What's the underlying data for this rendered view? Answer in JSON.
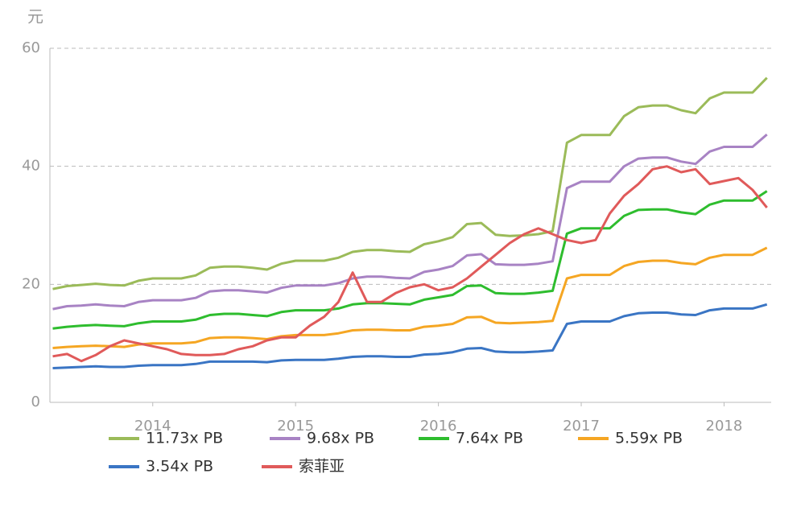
{
  "chart_data": {
    "type": "line",
    "y_label": "元",
    "x": [
      2013.3,
      2013.4,
      2013.5,
      2013.6,
      2013.7,
      2013.8,
      2013.9,
      2014.0,
      2014.1,
      2014.2,
      2014.3,
      2014.4,
      2014.5,
      2014.6,
      2014.7,
      2014.8,
      2014.9,
      2015.0,
      2015.1,
      2015.2,
      2015.3,
      2015.4,
      2015.5,
      2015.6,
      2015.7,
      2015.8,
      2015.9,
      2016.0,
      2016.1,
      2016.2,
      2016.3,
      2016.4,
      2016.5,
      2016.6,
      2016.7,
      2016.8,
      2016.9,
      2017.0,
      2017.1,
      2017.2,
      2017.3,
      2017.4,
      2017.5,
      2017.6,
      2017.7,
      2017.8,
      2017.9,
      2018.0,
      2018.1,
      2018.2,
      2018.3
    ],
    "xlim": [
      2013.28,
      2018.33
    ],
    "xticks": [
      2014,
      2015,
      2016,
      2017,
      2018
    ],
    "ylim": [
      0,
      60
    ],
    "yticks": [
      0,
      20,
      40,
      60
    ],
    "grid": true,
    "legend": "bottom",
    "series": [
      {
        "name": "11.73x PB",
        "color": "#9bbb59",
        "values": [
          19.2,
          19.7,
          19.9,
          20.1,
          19.9,
          19.8,
          20.6,
          21.0,
          21.0,
          21.0,
          21.5,
          22.8,
          23.0,
          23.0,
          22.8,
          22.5,
          23.5,
          24.0,
          24.0,
          24.0,
          24.5,
          25.5,
          25.8,
          25.8,
          25.6,
          25.5,
          26.8,
          27.3,
          28.0,
          30.2,
          30.4,
          28.4,
          28.2,
          28.3,
          28.5,
          29.0,
          44.0,
          45.3,
          45.3,
          45.3,
          48.5,
          50.0,
          50.3,
          50.3,
          49.5,
          49.0,
          51.5,
          52.5,
          52.5,
          52.5,
          55.0
        ]
      },
      {
        "name": "9.68x PB",
        "color": "#a883c4",
        "values": [
          15.8,
          16.3,
          16.4,
          16.6,
          16.4,
          16.3,
          17.0,
          17.3,
          17.3,
          17.3,
          17.7,
          18.8,
          19.0,
          19.0,
          18.8,
          18.6,
          19.4,
          19.8,
          19.8,
          19.8,
          20.2,
          21.0,
          21.3,
          21.3,
          21.1,
          21.0,
          22.1,
          22.5,
          23.1,
          24.9,
          25.1,
          23.4,
          23.3,
          23.3,
          23.5,
          23.9,
          36.3,
          37.4,
          37.4,
          37.4,
          40.0,
          41.3,
          41.5,
          41.5,
          40.8,
          40.4,
          42.5,
          43.3,
          43.3,
          43.3,
          45.4
        ]
      },
      {
        "name": "7.64x PB",
        "color": "#2ebd2e",
        "values": [
          12.5,
          12.8,
          13.0,
          13.1,
          13.0,
          12.9,
          13.4,
          13.7,
          13.7,
          13.7,
          14.0,
          14.8,
          15.0,
          15.0,
          14.8,
          14.6,
          15.3,
          15.6,
          15.6,
          15.6,
          15.9,
          16.6,
          16.8,
          16.8,
          16.7,
          16.6,
          17.4,
          17.8,
          18.2,
          19.7,
          19.8,
          18.5,
          18.4,
          18.4,
          18.6,
          18.9,
          28.6,
          29.5,
          29.5,
          29.5,
          31.6,
          32.6,
          32.7,
          32.7,
          32.2,
          31.9,
          33.5,
          34.2,
          34.2,
          34.2,
          35.8
        ]
      },
      {
        "name": "5.59x PB",
        "color": "#f5a623",
        "values": [
          9.2,
          9.4,
          9.5,
          9.6,
          9.5,
          9.4,
          9.8,
          10.0,
          10.0,
          10.0,
          10.2,
          10.9,
          11.0,
          11.0,
          10.9,
          10.7,
          11.2,
          11.4,
          11.4,
          11.4,
          11.7,
          12.2,
          12.3,
          12.3,
          12.2,
          12.2,
          12.8,
          13.0,
          13.3,
          14.4,
          14.5,
          13.5,
          13.4,
          13.5,
          13.6,
          13.8,
          21.0,
          21.6,
          21.6,
          21.6,
          23.1,
          23.8,
          24.0,
          24.0,
          23.6,
          23.4,
          24.5,
          25.0,
          25.0,
          25.0,
          26.2
        ]
      },
      {
        "name": "3.54x PB",
        "color": "#3a75c4",
        "values": [
          5.8,
          5.9,
          6.0,
          6.1,
          6.0,
          6.0,
          6.2,
          6.3,
          6.3,
          6.3,
          6.5,
          6.9,
          6.9,
          6.9,
          6.9,
          6.8,
          7.1,
          7.2,
          7.2,
          7.2,
          7.4,
          7.7,
          7.8,
          7.8,
          7.7,
          7.7,
          8.1,
          8.2,
          8.5,
          9.1,
          9.2,
          8.6,
          8.5,
          8.5,
          8.6,
          8.8,
          13.3,
          13.7,
          13.7,
          13.7,
          14.6,
          15.1,
          15.2,
          15.2,
          14.9,
          14.8,
          15.6,
          15.9,
          15.9,
          15.9,
          16.6
        ]
      },
      {
        "name": "索菲亚",
        "color": "#e05a5a",
        "values": [
          7.8,
          8.2,
          7.0,
          8.0,
          9.5,
          10.5,
          10.0,
          9.5,
          9.0,
          8.2,
          8.0,
          8.0,
          8.2,
          9.0,
          9.5,
          10.5,
          11.0,
          11.0,
          13.0,
          14.5,
          17.0,
          22.0,
          17.0,
          17.0,
          18.5,
          19.5,
          20.0,
          19.0,
          19.5,
          21.0,
          23.0,
          25.0,
          27.0,
          28.5,
          29.5,
          28.5,
          27.5,
          27.0,
          27.5,
          32.0,
          35.0,
          37.0,
          39.5,
          40.0,
          39.0,
          39.5,
          37.0,
          37.5,
          38.0,
          36.0,
          33.0
        ]
      }
    ]
  }
}
